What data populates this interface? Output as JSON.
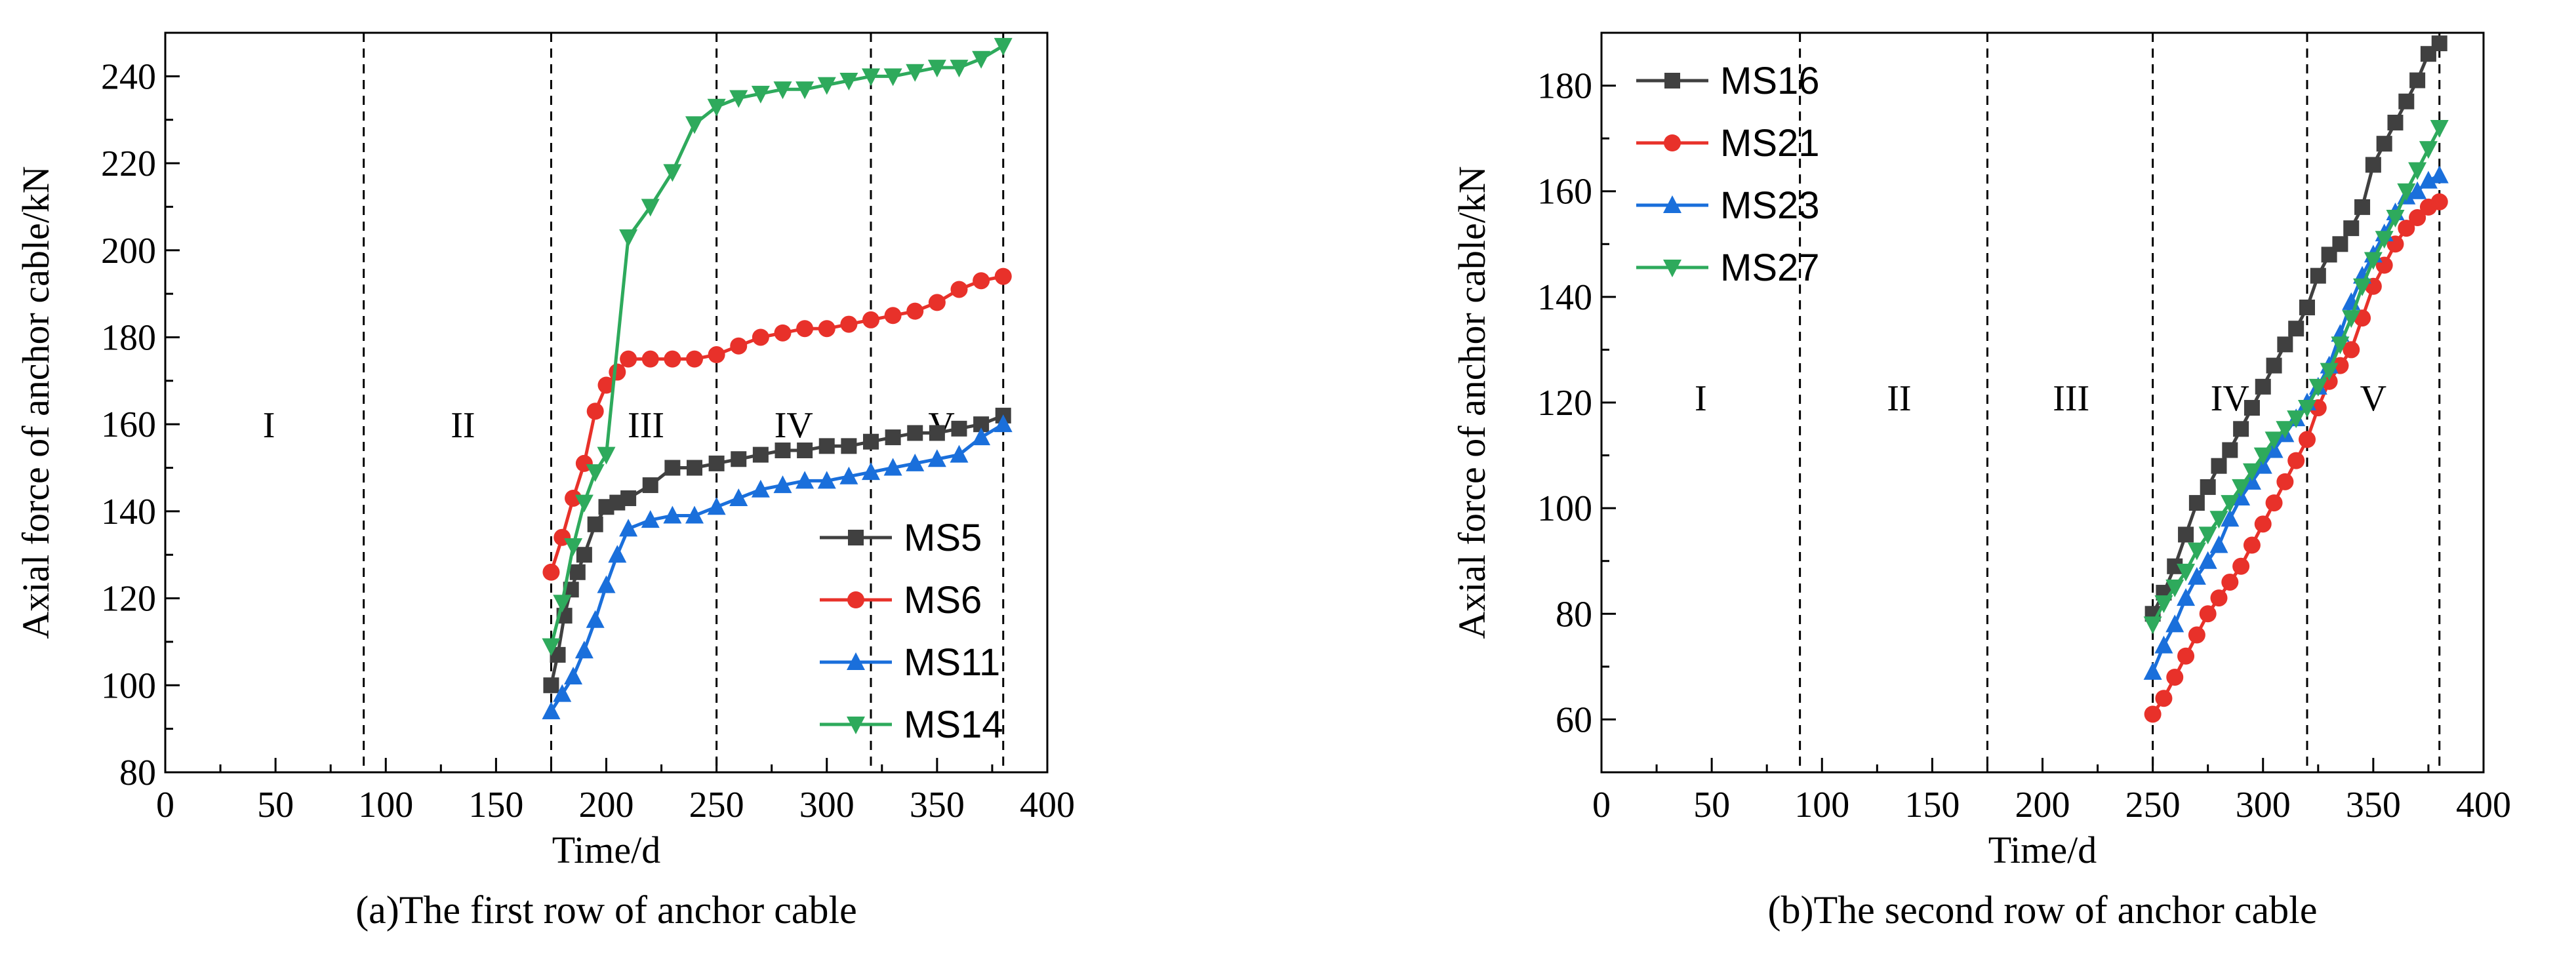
{
  "chart_data": [
    {
      "type": "line",
      "caption": "(a)The first row of anchor cable",
      "xlabel": "Time/d",
      "ylabel": "Axial force of anchor cable/kN",
      "xlim": [
        0,
        400
      ],
      "ylim": [
        80,
        250
      ],
      "xticks": [
        0,
        50,
        100,
        150,
        200,
        250,
        300,
        350,
        400
      ],
      "yticks": [
        80,
        100,
        120,
        140,
        160,
        180,
        200,
        220,
        240
      ],
      "stage_dividers": [
        90,
        175,
        250,
        320,
        380
      ],
      "stage_labels": [
        {
          "text": "I",
          "x": 47,
          "y": 160
        },
        {
          "text": "II",
          "x": 135,
          "y": 160
        },
        {
          "text": "III",
          "x": 218,
          "y": 160
        },
        {
          "text": "IV",
          "x": 285,
          "y": 160
        },
        {
          "text": "V",
          "x": 352,
          "y": 160
        }
      ],
      "legend_position": "bottom-right",
      "series": [
        {
          "name": "MS5",
          "color": "#404040",
          "marker": "square",
          "x": [
            175,
            178,
            181,
            184,
            187,
            190,
            195,
            200,
            205,
            210,
            220,
            230,
            240,
            250,
            260,
            270,
            280,
            290,
            300,
            310,
            320,
            330,
            340,
            350,
            360,
            370,
            380
          ],
          "y": [
            100,
            107,
            116,
            122,
            126,
            130,
            137,
            141,
            142,
            143,
            146,
            150,
            150,
            151,
            152,
            153,
            154,
            154,
            155,
            155,
            156,
            157,
            158,
            158,
            159,
            160,
            162
          ]
        },
        {
          "name": "MS6",
          "color": "#e8312a",
          "marker": "circle",
          "x": [
            175,
            180,
            185,
            190,
            195,
            200,
            205,
            210,
            220,
            230,
            240,
            250,
            260,
            270,
            280,
            290,
            300,
            310,
            320,
            330,
            340,
            350,
            360,
            370,
            380
          ],
          "y": [
            126,
            134,
            143,
            151,
            163,
            169,
            172,
            175,
            175,
            175,
            175,
            176,
            178,
            180,
            181,
            182,
            182,
            183,
            184,
            185,
            186,
            188,
            191,
            193,
            194
          ]
        },
        {
          "name": "MS11",
          "color": "#1a6fdb",
          "marker": "triangle-up",
          "x": [
            175,
            180,
            185,
            190,
            195,
            200,
            205,
            210,
            220,
            230,
            240,
            250,
            260,
            270,
            280,
            290,
            300,
            310,
            320,
            330,
            340,
            350,
            360,
            370,
            380
          ],
          "y": [
            94,
            98,
            102,
            108,
            115,
            123,
            130,
            136,
            138,
            139,
            139,
            141,
            143,
            145,
            146,
            147,
            147,
            148,
            149,
            150,
            151,
            152,
            153,
            157,
            160
          ]
        },
        {
          "name": "MS14",
          "color": "#2eaa5c",
          "marker": "triangle-down",
          "x": [
            175,
            180,
            185,
            190,
            195,
            200,
            210,
            220,
            230,
            240,
            250,
            260,
            270,
            280,
            290,
            300,
            310,
            320,
            330,
            340,
            350,
            360,
            370,
            380
          ],
          "y": [
            109,
            119,
            132,
            142,
            149,
            153,
            203,
            210,
            218,
            229,
            233,
            235,
            236,
            237,
            237,
            238,
            239,
            240,
            240,
            241,
            242,
            242,
            244,
            247
          ]
        }
      ]
    },
    {
      "type": "line",
      "caption": "(b)The second row of anchor cable",
      "xlabel": "Time/d",
      "ylabel": "Axial force of anchor cable/kN",
      "xlim": [
        0,
        400
      ],
      "ylim": [
        50,
        190
      ],
      "xticks": [
        0,
        50,
        100,
        150,
        200,
        250,
        300,
        350,
        400
      ],
      "yticks": [
        60,
        80,
        100,
        120,
        140,
        160,
        180
      ],
      "stage_dividers": [
        90,
        175,
        250,
        320,
        380
      ],
      "stage_labels": [
        {
          "text": "I",
          "x": 45,
          "y": 121
        },
        {
          "text": "II",
          "x": 135,
          "y": 121
        },
        {
          "text": "III",
          "x": 213,
          "y": 121
        },
        {
          "text": "IV",
          "x": 285,
          "y": 121
        },
        {
          "text": "V",
          "x": 350,
          "y": 121
        }
      ],
      "legend_position": "top-left",
      "series": [
        {
          "name": "MS16",
          "color": "#404040",
          "marker": "square",
          "x": [
            250,
            255,
            260,
            265,
            270,
            275,
            280,
            285,
            290,
            295,
            300,
            305,
            310,
            315,
            320,
            325,
            330,
            335,
            340,
            345,
            350,
            355,
            360,
            365,
            370,
            375,
            380
          ],
          "y": [
            80,
            84,
            89,
            95,
            101,
            104,
            108,
            111,
            115,
            119,
            123,
            127,
            131,
            134,
            138,
            144,
            148,
            150,
            153,
            157,
            165,
            169,
            173,
            177,
            181,
            186,
            188
          ]
        },
        {
          "name": "MS21",
          "color": "#e8312a",
          "marker": "circle",
          "x": [
            250,
            255,
            260,
            265,
            270,
            275,
            280,
            285,
            290,
            295,
            300,
            305,
            310,
            315,
            320,
            325,
            330,
            335,
            340,
            345,
            350,
            355,
            360,
            365,
            370,
            375,
            380
          ],
          "y": [
            61,
            64,
            68,
            72,
            76,
            80,
            83,
            86,
            89,
            93,
            97,
            101,
            105,
            109,
            113,
            119,
            124,
            127,
            130,
            136,
            142,
            146,
            150,
            153,
            155,
            157,
            158
          ]
        },
        {
          "name": "MS23",
          "color": "#1a6fdb",
          "marker": "triangle-up",
          "x": [
            250,
            255,
            260,
            265,
            270,
            275,
            280,
            285,
            290,
            295,
            300,
            305,
            310,
            315,
            320,
            325,
            330,
            335,
            340,
            345,
            350,
            355,
            360,
            365,
            370,
            375,
            380
          ],
          "y": [
            69,
            74,
            78,
            83,
            87,
            90,
            93,
            98,
            102,
            105,
            108,
            111,
            114,
            117,
            120,
            123,
            127,
            133,
            139,
            144,
            148,
            152,
            156,
            159,
            160,
            162,
            163
          ]
        },
        {
          "name": "MS27",
          "color": "#2eaa5c",
          "marker": "triangle-down",
          "x": [
            250,
            255,
            260,
            265,
            270,
            275,
            280,
            285,
            290,
            295,
            300,
            305,
            310,
            315,
            320,
            325,
            330,
            335,
            340,
            345,
            350,
            355,
            360,
            365,
            370,
            375,
            380
          ],
          "y": [
            78,
            82,
            85,
            88,
            92,
            95,
            98,
            101,
            104,
            107,
            110,
            113,
            115,
            117,
            119,
            123,
            126,
            131,
            136,
            142,
            147,
            151,
            155,
            160,
            164,
            168,
            172
          ]
        }
      ]
    }
  ]
}
